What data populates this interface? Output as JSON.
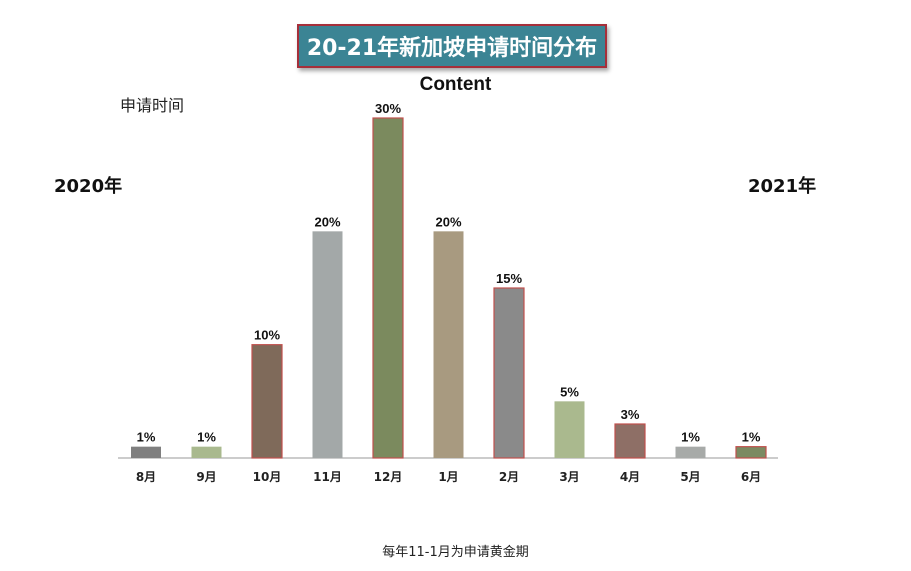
{
  "title": "20-21年新加坡申请时间分布",
  "left_year": "2020年",
  "right_year": "2021年",
  "footnote": "每年11-1月为申请黄金期",
  "chart_data": {
    "type": "bar",
    "title": "Content",
    "ylabel": "申请时间",
    "xlabel": "",
    "categories": [
      "8月",
      "9月",
      "10月",
      "11月",
      "12月",
      "1月",
      "2月",
      "3月",
      "4月",
      "5月",
      "6月"
    ],
    "values": [
      1,
      1,
      10,
      20,
      30,
      20,
      15,
      5,
      3,
      1,
      1
    ],
    "data_labels": [
      "1%",
      "1%",
      "10%",
      "20%",
      "30%",
      "20%",
      "15%",
      "5%",
      "3%",
      "1%",
      "1%"
    ],
    "bar_colors": [
      "#7f7f7f",
      "#a9b98e",
      "#7f6a5a",
      "#a3a8a8",
      "#7b8a5e",
      "#a89a80",
      "#8a8a8a",
      "#aab98e",
      "#8e6f66",
      "#a7aaa8",
      "#7b8a62"
    ],
    "bar_outlines": [
      "none",
      "none",
      "#c0504d",
      "none",
      "#c0504d",
      "none",
      "#c0504d",
      "none",
      "#c0504d",
      "none",
      "#c0504d"
    ],
    "grid": false,
    "legend": "none"
  }
}
